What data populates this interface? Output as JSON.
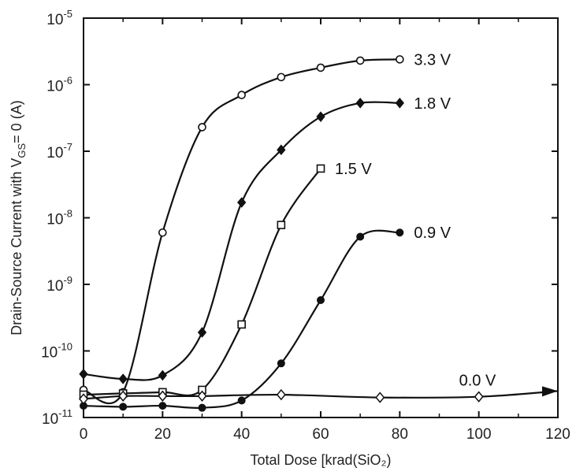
{
  "chart_data": {
    "type": "line",
    "xlabel": "Total Dose [krad(SiO₂)",
    "ylabel": "Drain-Source Current with V_GS= 0 (A)",
    "xlim": [
      0,
      120
    ],
    "ylim_log10": [
      -11,
      -5
    ],
    "y_scale": "log",
    "x_ticks": [
      0,
      20,
      40,
      60,
      80,
      100,
      120
    ],
    "y_tick_exponents": [
      -11,
      -10,
      -9,
      -8,
      -7,
      -6,
      -5
    ],
    "grid": false,
    "series": [
      {
        "name": "3.3 V",
        "marker": "open-circle",
        "points": [
          [
            0,
            2.6e-11
          ],
          [
            10,
            2.4e-11
          ],
          [
            20,
            6e-09
          ],
          [
            30,
            2.3e-07
          ],
          [
            40,
            7e-07
          ],
          [
            50,
            1.3e-06
          ],
          [
            60,
            1.8e-06
          ],
          [
            70,
            2.3e-06
          ],
          [
            80,
            2.4e-06
          ]
        ]
      },
      {
        "name": "1.8 V",
        "marker": "filled-diamond",
        "points": [
          [
            0,
            4.5e-11
          ],
          [
            10,
            3.8e-11
          ],
          [
            20,
            4.3e-11
          ],
          [
            30,
            1.9e-10
          ],
          [
            40,
            1.7e-08
          ],
          [
            50,
            1.05e-07
          ],
          [
            60,
            3.3e-07
          ],
          [
            70,
            5.3e-07
          ],
          [
            80,
            5.3e-07
          ]
        ]
      },
      {
        "name": "1.5 V",
        "marker": "open-square",
        "points": [
          [
            0,
            2.2e-11
          ],
          [
            10,
            2.3e-11
          ],
          [
            20,
            2.4e-11
          ],
          [
            30,
            2.6e-11
          ],
          [
            40,
            2.5e-10
          ],
          [
            50,
            7.8e-09
          ],
          [
            60,
            5.5e-08
          ]
        ]
      },
      {
        "name": "0.9 V",
        "marker": "filled-circle",
        "points": [
          [
            0,
            1.5e-11
          ],
          [
            10,
            1.45e-11
          ],
          [
            20,
            1.5e-11
          ],
          [
            30,
            1.4e-11
          ],
          [
            40,
            1.8e-11
          ],
          [
            50,
            6.5e-11
          ],
          [
            60,
            5.8e-10
          ],
          [
            70,
            5.2e-09
          ],
          [
            80,
            6e-09
          ]
        ]
      },
      {
        "name": "0.0 V",
        "marker": "open-diamond",
        "points": [
          [
            0,
            1.9e-11
          ],
          [
            10,
            2.1e-11
          ],
          [
            20,
            2.1e-11
          ],
          [
            30,
            2.1e-11
          ],
          [
            50,
            2.2e-11
          ],
          [
            75,
            2e-11
          ],
          [
            100,
            2.05e-11
          ],
          [
            120,
            2.5e-11
          ]
        ]
      }
    ]
  }
}
